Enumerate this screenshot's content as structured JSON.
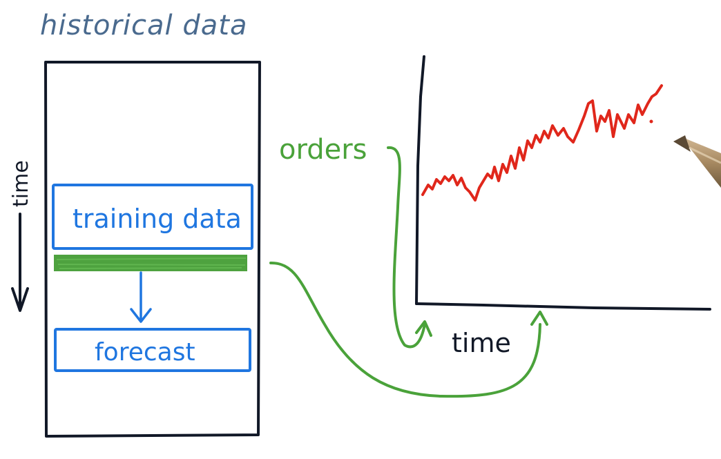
{
  "labels": {
    "historical_data": "historical data",
    "time_vertical": "time",
    "training_data": "training data",
    "forecast": "forecast",
    "orders": "orders",
    "time_axis": "time"
  },
  "colors": {
    "ink": "#111827",
    "title_ink": "#4a6a8e",
    "blue": "#1f76e0",
    "green": "#4aa23a",
    "band_green": "#3f9a2f",
    "red": "#e0271b",
    "pen_body": "#a88a62",
    "pen_tip": "#5b4a35"
  },
  "icons": {
    "pen": "pen-icon"
  }
}
